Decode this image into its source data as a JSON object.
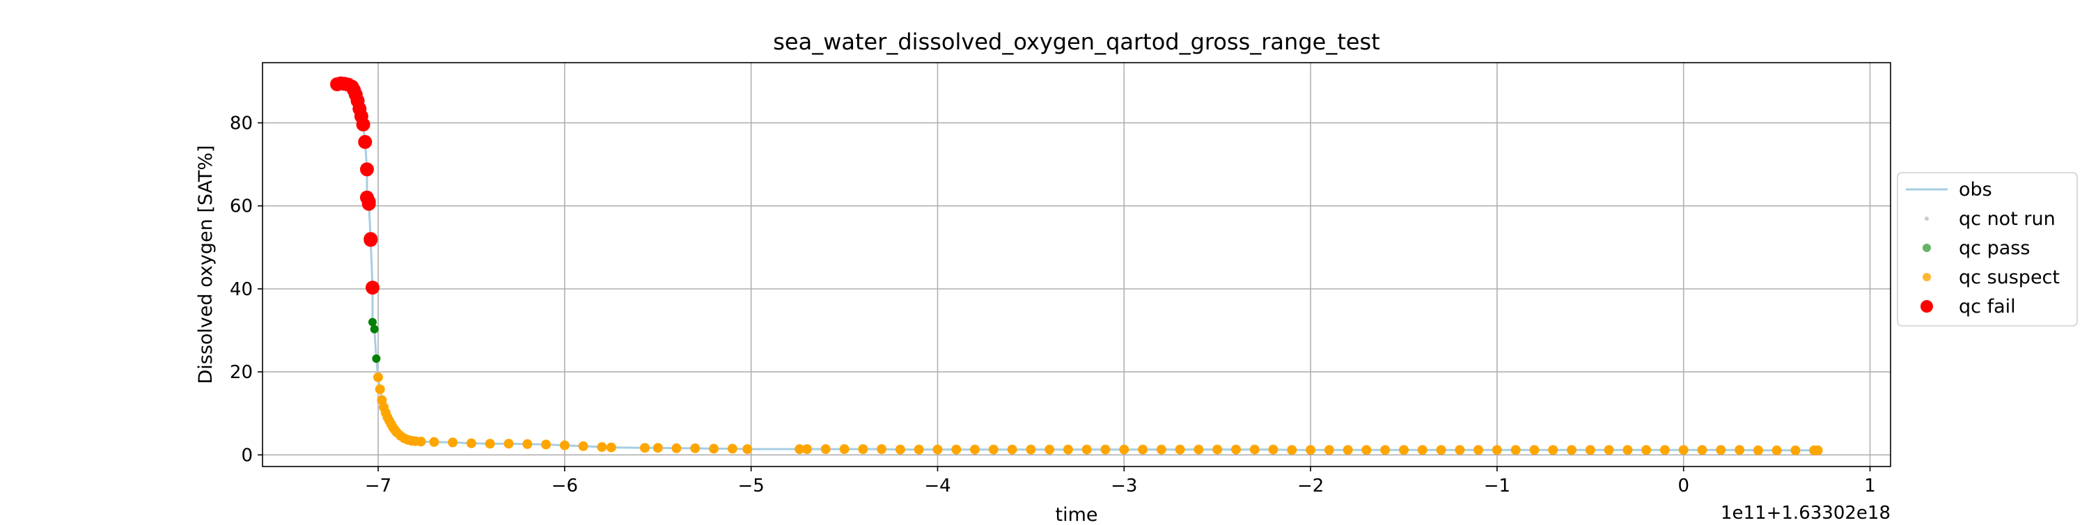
{
  "chart_data": {
    "type": "scatter",
    "title": "sea_water_dissolved_oxygen_qartod_gross_range_test",
    "xlabel": "time",
    "ylabel": "Dissolved oxygen [SAT%]",
    "x_offset_label": "1e11+1.63302e18",
    "xlim": [
      -7.62,
      1.11
    ],
    "ylim": [
      -2.8,
      94.5
    ],
    "xticks": [
      -7,
      -6,
      -5,
      -4,
      -3,
      -2,
      -1,
      0,
      1
    ],
    "xtick_labels": [
      "−7",
      "−6",
      "−5",
      "−4",
      "−3",
      "−2",
      "−1",
      "0",
      "1"
    ],
    "yticks": [
      0,
      20,
      40,
      60,
      80
    ],
    "ytick_labels": [
      "0",
      "20",
      "40",
      "60",
      "80"
    ],
    "grid": true,
    "legend_position": "right",
    "colors": {
      "obs": "#a6cee3",
      "qc_not_run": "#cccccc",
      "qc_pass": "#008000",
      "qc_suspect": "#ffa500",
      "qc_fail": "#ff0000"
    },
    "legend": [
      {
        "key": "obs",
        "label": "obs",
        "marker": "line"
      },
      {
        "key": "qc_not_run",
        "label": "qc not run",
        "marker": "dot-small"
      },
      {
        "key": "qc_pass",
        "label": "qc pass",
        "marker": "dot"
      },
      {
        "key": "qc_suspect",
        "label": "qc suspect",
        "marker": "dot"
      },
      {
        "key": "qc_fail",
        "label": "qc fail",
        "marker": "dot-large"
      }
    ],
    "series": [
      {
        "name": "qc fail",
        "key": "qc_fail",
        "x": [
          -7.22,
          -7.2,
          -7.18,
          -7.16,
          -7.14,
          -7.13,
          -7.12,
          -7.11,
          -7.1,
          -7.09,
          -7.08,
          -7.07,
          -7.06,
          -7.06,
          -7.05,
          -7.05,
          -7.04,
          -7.04,
          -7.03
        ],
        "y": [
          89.3,
          89.5,
          89.4,
          89.2,
          88.7,
          87.9,
          86.8,
          85.3,
          83.4,
          81.6,
          79.6,
          75.4,
          68.8,
          62.0,
          61.0,
          60.5,
          52.0,
          51.8,
          40.3
        ]
      },
      {
        "name": "qc pass",
        "key": "qc_pass",
        "x": [
          -7.03,
          -7.02,
          -7.01
        ],
        "y": [
          32.0,
          30.3,
          23.2
        ]
      },
      {
        "name": "qc suspect",
        "key": "qc_suspect",
        "x": [
          -7.0,
          -6.99,
          -6.98,
          -6.97,
          -6.96,
          -6.95,
          -6.94,
          -6.93,
          -6.92,
          -6.91,
          -6.9,
          -6.88,
          -6.86,
          -6.84,
          -6.82,
          -6.8,
          -6.77,
          -6.7,
          -6.6,
          -6.5,
          -6.4,
          -6.3,
          -6.2,
          -6.1,
          -6.0,
          -5.9,
          -5.8,
          -5.75,
          -5.57,
          -5.5,
          -5.4,
          -5.3,
          -5.2,
          -5.1,
          -5.02,
          -4.74,
          -4.7,
          -4.6,
          -4.5,
          -4.4,
          -4.3,
          -4.2,
          -4.1,
          -4.0,
          -3.9,
          -3.8,
          -3.7,
          -3.6,
          -3.5,
          -3.4,
          -3.3,
          -3.2,
          -3.1,
          -3.0,
          -2.9,
          -2.8,
          -2.7,
          -2.6,
          -2.5,
          -2.4,
          -2.3,
          -2.2,
          -2.1,
          -2.0,
          -1.9,
          -1.8,
          -1.7,
          -1.6,
          -1.5,
          -1.4,
          -1.3,
          -1.2,
          -1.1,
          -1.0,
          -0.9,
          -0.8,
          -0.7,
          -0.6,
          -0.5,
          -0.4,
          -0.3,
          -0.2,
          -0.1,
          0.0,
          0.1,
          0.2,
          0.3,
          0.4,
          0.5,
          0.6,
          0.7,
          0.72
        ],
        "y": [
          18.7,
          15.8,
          13.2,
          11.5,
          10.2,
          9.1,
          8.2,
          7.4,
          6.6,
          6.0,
          5.4,
          4.6,
          4.0,
          3.6,
          3.4,
          3.3,
          3.2,
          3.1,
          3.0,
          2.8,
          2.7,
          2.7,
          2.6,
          2.5,
          2.3,
          2.1,
          1.9,
          1.8,
          1.7,
          1.7,
          1.6,
          1.6,
          1.5,
          1.5,
          1.4,
          1.4,
          1.4,
          1.4,
          1.4,
          1.4,
          1.4,
          1.3,
          1.3,
          1.3,
          1.3,
          1.3,
          1.3,
          1.3,
          1.3,
          1.3,
          1.3,
          1.3,
          1.3,
          1.3,
          1.3,
          1.3,
          1.3,
          1.3,
          1.3,
          1.3,
          1.3,
          1.3,
          1.2,
          1.2,
          1.2,
          1.2,
          1.2,
          1.2,
          1.2,
          1.2,
          1.2,
          1.2,
          1.2,
          1.2,
          1.2,
          1.2,
          1.2,
          1.2,
          1.2,
          1.2,
          1.2,
          1.2,
          1.2,
          1.2,
          1.2,
          1.2,
          1.2,
          1.1,
          1.1,
          1.1,
          1.1,
          1.1
        ]
      }
    ]
  }
}
